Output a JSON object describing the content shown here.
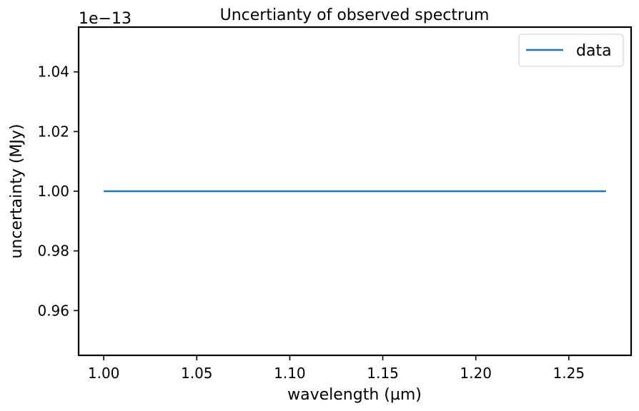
{
  "chart_data": {
    "type": "line",
    "title": "Uncertianty of observed spectrum",
    "xlabel": "wavelength (µm)",
    "ylabel": "uncertainty (MJy)",
    "y_offset_label": "1e−13",
    "xlim": [
      0.9865,
      1.2835
    ],
    "ylim": [
      0.945,
      1.055
    ],
    "x_ticks": [
      1.0,
      1.05,
      1.1,
      1.15,
      1.2,
      1.25
    ],
    "x_tick_labels": [
      "1.00",
      "1.05",
      "1.10",
      "1.15",
      "1.20",
      "1.25"
    ],
    "y_ticks": [
      0.96,
      0.98,
      1.0,
      1.02,
      1.04
    ],
    "y_tick_labels": [
      "0.96",
      "0.98",
      "1.00",
      "1.02",
      "1.04"
    ],
    "grid": false,
    "legend_position": "top-right",
    "series": [
      {
        "name": "data",
        "color": "#1f77b4",
        "x": [
          1.0,
          1.27
        ],
        "y": [
          1.0,
          1.0
        ]
      }
    ]
  }
}
